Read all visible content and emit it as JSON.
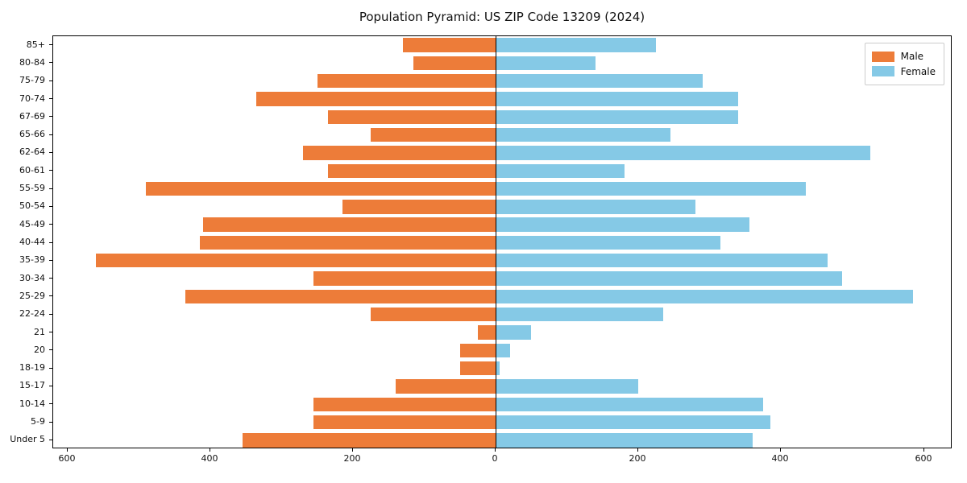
{
  "title": "Population Pyramid: US ZIP Code 13209 (2024)",
  "legend": {
    "male_label": "Male",
    "female_label": "Female"
  },
  "colors": {
    "male": "#ED7C39",
    "female": "#85C9E6"
  },
  "chart_data": {
    "type": "bar",
    "subtype": "population-pyramid",
    "title": "Population Pyramid: US ZIP Code 13209 (2024)",
    "orientation": "horizontal",
    "legend_position": "upper right",
    "grid": false,
    "xlim": [
      -620,
      640
    ],
    "x_tick_positions": [
      -600,
      -400,
      -200,
      0,
      200,
      400,
      600
    ],
    "x_tick_labels": [
      "600",
      "400",
      "200",
      "0",
      "200",
      "400",
      "600"
    ],
    "categories_top_to_bottom": [
      "85+",
      "80-84",
      "75-79",
      "70-74",
      "67-69",
      "65-66",
      "62-64",
      "60-61",
      "55-59",
      "50-54",
      "45-49",
      "40-44",
      "35-39",
      "30-34",
      "25-29",
      "22-24",
      "21",
      "20",
      "18-19",
      "15-17",
      "10-14",
      "5-9",
      "Under 5"
    ],
    "series": [
      {
        "name": "Male",
        "direction": "left",
        "color": "#ED7C39",
        "values": [
          130,
          115,
          250,
          335,
          235,
          175,
          270,
          235,
          490,
          215,
          410,
          415,
          560,
          255,
          435,
          175,
          25,
          50,
          50,
          140,
          255,
          255,
          355
        ]
      },
      {
        "name": "Female",
        "direction": "right",
        "color": "#85C9E6",
        "values": [
          225,
          140,
          290,
          340,
          340,
          245,
          525,
          180,
          435,
          280,
          355,
          315,
          465,
          485,
          585,
          235,
          50,
          20,
          5,
          200,
          375,
          385,
          360
        ]
      }
    ]
  }
}
